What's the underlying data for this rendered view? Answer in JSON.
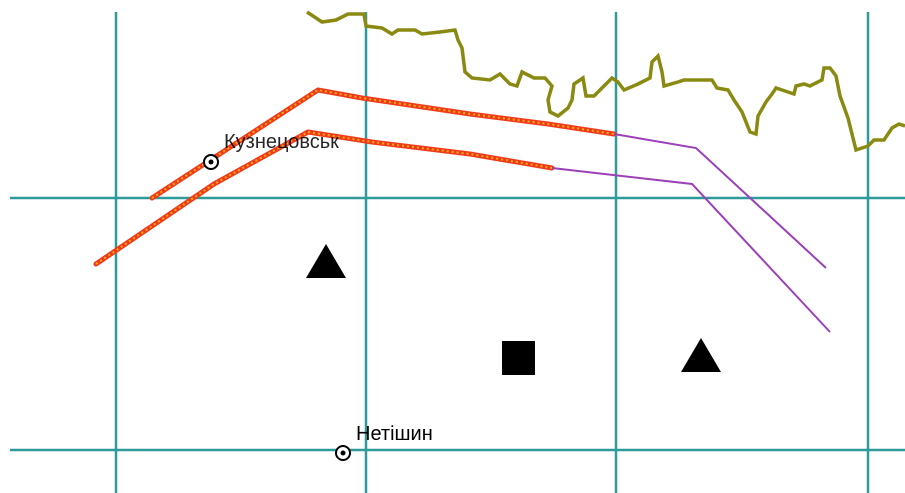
{
  "places": [
    {
      "id": "kuznetsovsk",
      "name": "Кузнецовськ"
    },
    {
      "id": "netishyn",
      "name": "Нетішин"
    }
  ],
  "colors": {
    "background": "#ffffff",
    "grid": "#2e9a9a",
    "border": "#8a8a12",
    "line_in_scope": "#9c3fb8",
    "line_highlight": "#f03a1e",
    "line_highlight_dots": "#ffb000",
    "symbols": "#000000",
    "place_marker": "#000000"
  },
  "symbols": {
    "triangle_icon": "triangle-icon",
    "square_icon": "square-icon",
    "settlement_icon": "settlement-marker-icon"
  }
}
